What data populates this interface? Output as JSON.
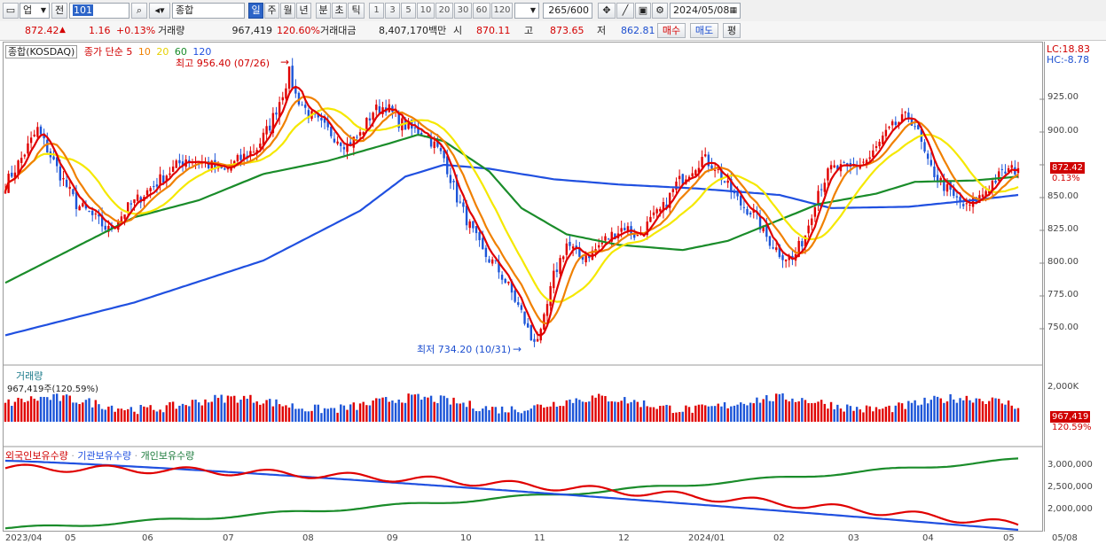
{
  "toolbar": {
    "market": "업",
    "prev_label": "전",
    "code": "101",
    "name": "종합(KOSDAQ)",
    "periods": [
      "일",
      "주",
      "월",
      "년",
      "분",
      "초",
      "틱"
    ],
    "active_period": "일",
    "intervals": [
      "1",
      "3",
      "5",
      "10",
      "20",
      "30",
      "60",
      "120"
    ],
    "count": "265",
    "count_total": "/600",
    "date": "2024/05/08"
  },
  "quote": {
    "price": "872.42",
    "change": "1.16",
    "change_pct": "+0.13%",
    "volume_label": "거래량",
    "volume": "967,419",
    "volume_pct": "120.60%",
    "amount_label": "거래대금",
    "amount": "8,407,170백만",
    "open_label": "시",
    "open": "870.11",
    "high_label": "고",
    "high": "873.65",
    "low_label": "저",
    "low": "862.81",
    "buy_label": "매수",
    "sell_label": "매도",
    "eval_label": "평"
  },
  "price_panel": {
    "title": "종합(KOSDAQ)",
    "ma_label": "종가 단순",
    "ma_periods": [
      "5",
      "10",
      "20",
      "60",
      "120"
    ],
    "ma_colors": [
      "#e00000",
      "#f08000",
      "#f0e000",
      "#1a8c2a",
      "#2050e0"
    ],
    "high_note": "최고 956.40 (07/26)",
    "low_note": "최저 734.20 (10/31)",
    "lc": "LC:18.83",
    "hc": "HC:-8.78",
    "last_price": "872.42",
    "last_pct": "0.13%",
    "y_ticks": [
      "925.00",
      "900.00",
      "875.00",
      "850.00",
      "825.00",
      "800.00",
      "775.00",
      "750.00"
    ]
  },
  "volume_panel": {
    "title": "거래량",
    "value": "967,419주(120.59%)",
    "y_tick": "2,000K",
    "last_value": "967,419",
    "last_pct": "120.59%"
  },
  "holdings_panel": {
    "series": [
      "외국인보유수량",
      "기관보유수량",
      "개인보유수량"
    ],
    "colors": [
      "#e00000",
      "#2050e0",
      "#1a8c2a"
    ],
    "y_ticks": [
      "3,000,000",
      "2,500,000",
      "2,000,000"
    ]
  },
  "x_labels": [
    "2023/04",
    "05",
    "06",
    "07",
    "08",
    "09",
    "10",
    "11",
    "12",
    "2024/01",
    "02",
    "03",
    "04",
    "05",
    "05/08"
  ],
  "chart_data": {
    "type": "candlestick",
    "title": "종합(KOSDAQ)",
    "y_ticks": [
      925,
      900,
      875,
      850,
      825,
      800,
      775,
      750
    ],
    "close_path": [
      [
        0,
        860
      ],
      [
        5,
        880
      ],
      [
        10,
        902
      ],
      [
        16,
        872
      ],
      [
        22,
        845
      ],
      [
        26,
        838
      ],
      [
        32,
        825
      ],
      [
        38,
        842
      ],
      [
        44,
        855
      ],
      [
        50,
        868
      ],
      [
        56,
        880
      ],
      [
        62,
        876
      ],
      [
        68,
        870
      ],
      [
        72,
        878
      ],
      [
        78,
        888
      ],
      [
        82,
        905
      ],
      [
        86,
        930
      ],
      [
        88,
        945
      ],
      [
        90,
        928
      ],
      [
        94,
        914
      ],
      [
        98,
        905
      ],
      [
        102,
        897
      ],
      [
        106,
        890
      ],
      [
        110,
        898
      ],
      [
        114,
        916
      ],
      [
        118,
        920
      ],
      [
        122,
        908
      ],
      [
        126,
        902
      ],
      [
        130,
        900
      ],
      [
        136,
        880
      ],
      [
        140,
        850
      ],
      [
        144,
        828
      ],
      [
        148,
        808
      ],
      [
        152,
        798
      ],
      [
        156,
        782
      ],
      [
        160,
        762
      ],
      [
        163,
        742
      ],
      [
        166,
        745
      ],
      [
        170,
        790
      ],
      [
        174,
        815
      ],
      [
        178,
        805
      ],
      [
        182,
        808
      ],
      [
        186,
        818
      ],
      [
        192,
        828
      ],
      [
        196,
        820
      ],
      [
        200,
        832
      ],
      [
        204,
        842
      ],
      [
        208,
        860
      ],
      [
        212,
        870
      ],
      [
        216,
        880
      ],
      [
        220,
        874
      ],
      [
        224,
        858
      ],
      [
        228,
        845
      ],
      [
        232,
        838
      ],
      [
        236,
        820
      ],
      [
        240,
        808
      ],
      [
        244,
        802
      ],
      [
        248,
        822
      ],
      [
        252,
        856
      ],
      [
        256,
        872
      ],
      [
        262,
        872
      ],
      [
        268,
        880
      ],
      [
        272,
        895
      ],
      [
        276,
        906
      ],
      [
        280,
        912
      ],
      [
        282,
        906
      ],
      [
        286,
        875
      ],
      [
        290,
        862
      ],
      [
        294,
        850
      ],
      [
        298,
        842
      ],
      [
        302,
        850
      ],
      [
        306,
        862
      ],
      [
        310,
        870
      ],
      [
        314,
        872
      ]
    ],
    "ma60_path": [
      [
        0,
        785
      ],
      [
        20,
        810
      ],
      [
        40,
        835
      ],
      [
        60,
        848
      ],
      [
        80,
        868
      ],
      [
        100,
        878
      ],
      [
        120,
        892
      ],
      [
        128,
        898
      ],
      [
        136,
        893
      ],
      [
        150,
        870
      ],
      [
        160,
        842
      ],
      [
        174,
        822
      ],
      [
        190,
        814
      ],
      [
        210,
        810
      ],
      [
        224,
        817
      ],
      [
        240,
        833
      ],
      [
        252,
        845
      ],
      [
        270,
        853
      ],
      [
        282,
        862
      ],
      [
        300,
        863
      ],
      [
        314,
        866
      ]
    ],
    "ma120_path": [
      [
        0,
        745
      ],
      [
        40,
        770
      ],
      [
        80,
        802
      ],
      [
        110,
        840
      ],
      [
        124,
        866
      ],
      [
        136,
        875
      ],
      [
        150,
        872
      ],
      [
        170,
        864
      ],
      [
        190,
        860
      ],
      [
        214,
        857
      ],
      [
        240,
        852
      ],
      [
        256,
        842
      ],
      [
        280,
        843
      ],
      [
        300,
        848
      ],
      [
        314,
        852
      ]
    ],
    "price_annotations": {
      "high": 956.4,
      "high_date": "07/26",
      "low": 734.2,
      "low_date": "10/31"
    },
    "last_price": 872.42,
    "volume_last": 967419,
    "holdings_last": {
      "외국인보유수량": 1780000,
      "기관보유수량": 1680000,
      "개인보유수량": 3120000
    }
  }
}
